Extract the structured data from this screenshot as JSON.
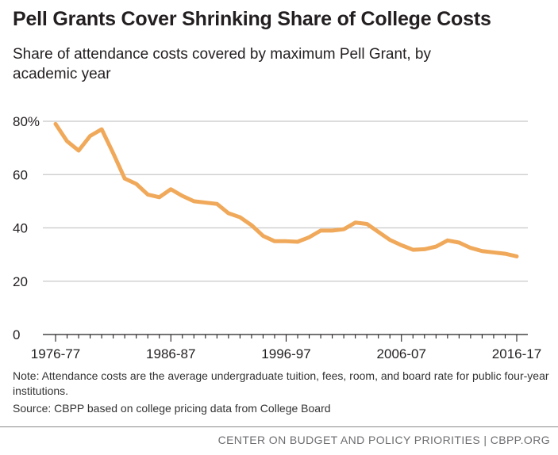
{
  "header": {
    "title": "Pell Grants Cover Shrinking Share of College Costs",
    "subtitle": "Share of attendance costs covered by maximum Pell Grant, by academic year"
  },
  "notes": {
    "note": "Note: Attendance costs are the average undergraduate tuition, fees, room, and board rate for public four-year institutions.",
    "source": "Source: CBPP based on college pricing data from College Board"
  },
  "footer": {
    "credit": "CENTER ON BUDGET AND POLICY PRIORITIES | CBPP.ORG"
  },
  "colors": {
    "line": "#f0a95a",
    "grid": "#c8c8c8",
    "axis": "#231f20"
  },
  "chart_data": {
    "type": "line",
    "title": "Pell Grants Cover Shrinking Share of College Costs",
    "subtitle": "Share of attendance costs covered by maximum Pell Grant, by academic year",
    "xlabel": "",
    "ylabel": "",
    "ylim": [
      0,
      80
    ],
    "yticks": [
      0,
      20,
      40,
      60,
      80
    ],
    "ytick_labels": [
      "0",
      "20",
      "40",
      "60",
      "80%"
    ],
    "x_labeled_ticks": [
      "1976-77",
      "1986-87",
      "1996-97",
      "2006-07",
      "2016-17"
    ],
    "x_labeled_tick_indices": [
      0,
      10,
      20,
      30,
      40
    ],
    "grid": "horizontal",
    "series": [
      {
        "name": "Share of attendance costs covered by maximum Pell Grant",
        "start_year": "1976-77",
        "values": [
          79,
          72.5,
          69,
          74.5,
          77,
          68,
          58.5,
          56.5,
          52.5,
          51.5,
          54.5,
          52,
          50,
          49.5,
          49,
          45.5,
          44,
          41,
          37,
          35,
          35,
          34.8,
          36.5,
          39,
          39,
          39.5,
          42,
          41.5,
          38.5,
          35.5,
          33.5,
          31.8,
          32,
          33,
          35.3,
          34.5,
          32.5,
          31.3,
          30.8,
          30.3,
          29.3
        ]
      }
    ]
  }
}
